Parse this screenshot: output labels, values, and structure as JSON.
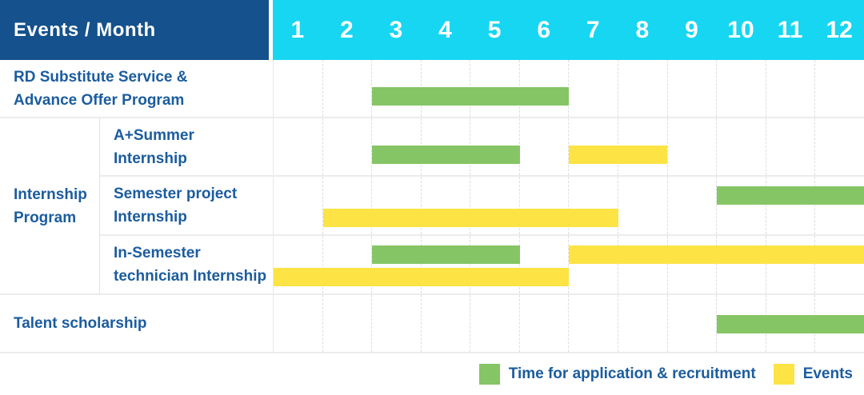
{
  "table": {
    "corner_label": "Events / Month",
    "months": [
      "1",
      "2",
      "3",
      "4",
      "5",
      "6",
      "7",
      "8",
      "9",
      "10",
      "11",
      "12"
    ]
  },
  "colors": {
    "header_bg": "#15518C",
    "month_band_bg": "#17D6F2",
    "application_green": "#85C565",
    "events_yellow": "#FDE344",
    "label_text_blue": "#1B5C9F"
  },
  "chart_data": {
    "type": "gantt",
    "x_unit": "month",
    "x_range": [
      1,
      12
    ],
    "grid": "vertical-dashed",
    "legend_position": "bottom-right",
    "series_colors": {
      "application": "#85C565",
      "events": "#FDE344"
    },
    "group_label": "Internship Program",
    "group_label_lines": [
      "Internship",
      "Program"
    ],
    "rows": [
      {
        "label": "RD Substitute Service & Advance Offer Program",
        "lines": [
          "RD Substitute Service &",
          "Advance Offer Program"
        ],
        "group": "",
        "bars": [
          {
            "series": "application",
            "start_month": 3,
            "end_month": 6,
            "level": "low"
          }
        ]
      },
      {
        "label": "A+Summer Internship",
        "lines": [
          "A+Summer",
          "Internship"
        ],
        "group": "Internship Program",
        "bars": [
          {
            "series": "application",
            "start_month": 3,
            "end_month": 5,
            "level": "low"
          },
          {
            "series": "events",
            "start_month": 7,
            "end_month": 8,
            "level": "low"
          }
        ]
      },
      {
        "label": "Semester project Internship",
        "lines": [
          "Semester project",
          "Internship"
        ],
        "group": "Internship Program",
        "bars": [
          {
            "series": "application",
            "start_month": 10,
            "end_month": 12,
            "level": "top"
          },
          {
            "series": "events",
            "start_month": 2,
            "end_month": 7,
            "level": "bottom"
          }
        ]
      },
      {
        "label": "In-Semester technician Internship",
        "lines": [
          "In-Semester",
          "technician Internship"
        ],
        "group": "Internship Program",
        "bars": [
          {
            "series": "application",
            "start_month": 3,
            "end_month": 5,
            "level": "top"
          },
          {
            "series": "events",
            "start_month": 7,
            "end_month": 12,
            "level": "top"
          },
          {
            "series": "events",
            "start_month": 1,
            "end_month": 6,
            "level": "bottom"
          }
        ]
      },
      {
        "label": "Talent scholarship",
        "lines": [
          "Talent scholarship"
        ],
        "group": "",
        "bars": [
          {
            "series": "application",
            "start_month": 10,
            "end_month": 12,
            "level": "middle"
          }
        ]
      }
    ],
    "legend": [
      {
        "series": "application",
        "label": "Time for application & recruitment",
        "color": "#85C565"
      },
      {
        "series": "events",
        "label": "Events",
        "color": "#FDE344"
      }
    ]
  }
}
